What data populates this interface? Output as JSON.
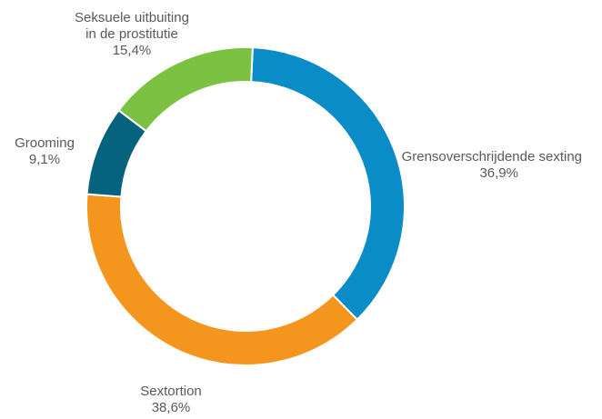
{
  "chart_data": {
    "type": "pie",
    "donut": true,
    "slices": [
      {
        "name": "Grensoverschrijdende sexting",
        "value": 36.9,
        "value_label": "36,9%",
        "color": "#0A8CC6"
      },
      {
        "name": "Sextortion",
        "value": 38.6,
        "value_label": "38,6%",
        "color": "#F4961E"
      },
      {
        "name": "Grooming",
        "value": 9.1,
        "value_label": "9,1%",
        "color": "#06637E"
      },
      {
        "name": "Seksuele uitbuiting in de prostitutie",
        "name_lines": [
          "Seksuele uitbuiting",
          "in de prostitutie"
        ],
        "value": 15.4,
        "value_label": "15,4%",
        "color": "#7CC242"
      }
    ]
  }
}
